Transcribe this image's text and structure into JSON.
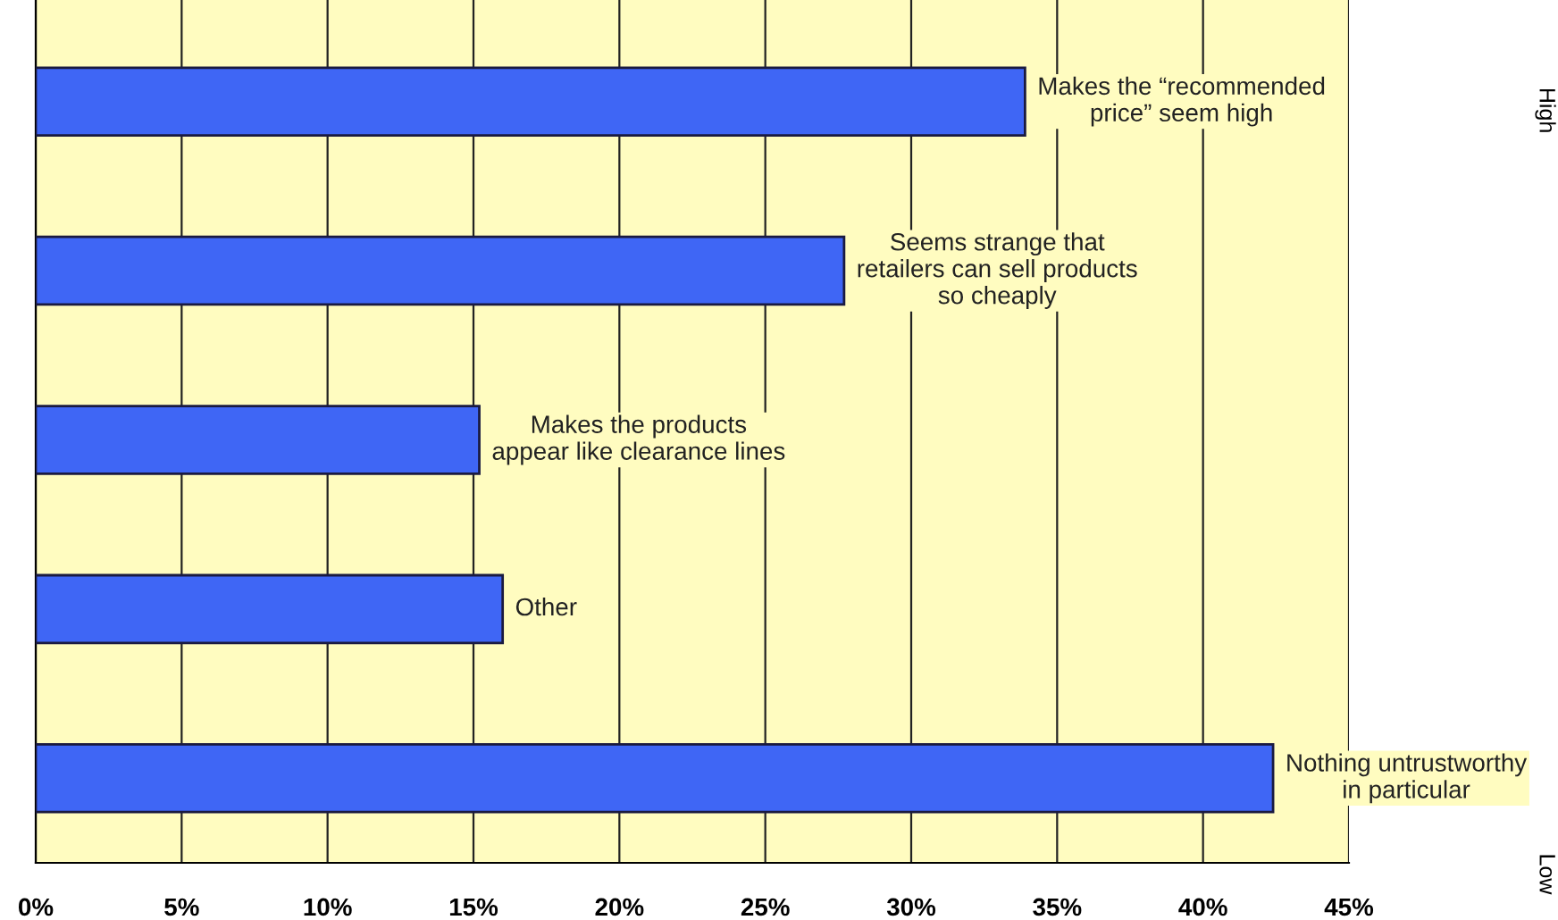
{
  "chart_data": {
    "type": "bar",
    "orientation": "horizontal",
    "categories": [
      "Makes the “recommended\nprice” seem high",
      "Seems strange that\nretailers can sell products\nso cheaply",
      "Makes the products\nappear like clearance lines",
      "Other",
      "Nothing untrustworthy\nin particular"
    ],
    "values": [
      33.9,
      27.7,
      15.2,
      16.0,
      42.4
    ],
    "color": "#3f66f5",
    "xlim": [
      0,
      45
    ],
    "xticks": [
      {
        "value": 0,
        "label": "0%"
      },
      {
        "value": 5,
        "label": "5%"
      },
      {
        "value": 10,
        "label": "10%"
      },
      {
        "value": 15,
        "label": "15%"
      },
      {
        "value": 20,
        "label": "20%"
      },
      {
        "value": 25,
        "label": "25%"
      },
      {
        "value": 30,
        "label": "30%"
      },
      {
        "value": 35,
        "label": "35%"
      },
      {
        "value": 40,
        "label": "40%"
      },
      {
        "value": 45,
        "label": "45%"
      }
    ],
    "grid": "x",
    "tick_labels": "x",
    "annotations": [
      "High",
      "Low"
    ]
  }
}
